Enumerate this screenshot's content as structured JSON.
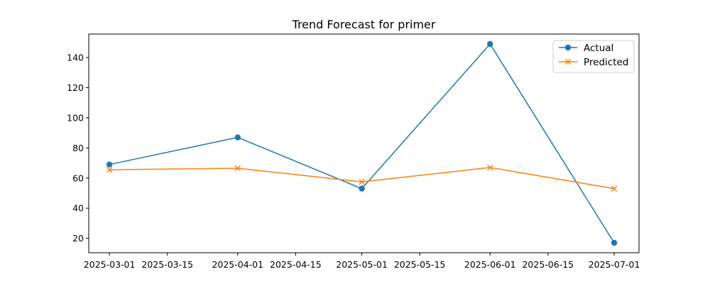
{
  "chart_data": {
    "type": "line",
    "title": "Trend Forecast for primer",
    "xlabel": "",
    "ylabel": "",
    "x": [
      "2025-03-01",
      "2025-04-01",
      "2025-05-01",
      "2025-06-01",
      "2025-07-01"
    ],
    "series": [
      {
        "name": "Actual",
        "color": "#1f77b4",
        "marker": "circle",
        "values": [
          69,
          87,
          53,
          149,
          17
        ]
      },
      {
        "name": "Predicted",
        "color": "#ff7f0e",
        "marker": "x",
        "values": [
          65.5,
          66.5,
          57.5,
          67,
          53
        ]
      }
    ],
    "x_ticks": [
      "2025-03-01",
      "2025-03-15",
      "2025-04-01",
      "2025-04-15",
      "2025-05-01",
      "2025-05-15",
      "2025-06-01",
      "2025-06-15",
      "2025-07-01"
    ],
    "y_ticks": [
      20,
      40,
      60,
      80,
      100,
      120,
      140
    ],
    "xlim": [
      "2025-02-24",
      "2025-07-07"
    ],
    "ylim": [
      10.4,
      155.6
    ],
    "grid": false,
    "legend_position": "top-right"
  }
}
